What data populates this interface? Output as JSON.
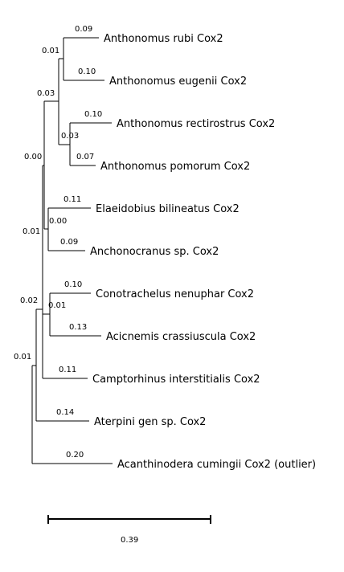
{
  "tree": {
    "leaves": [
      {
        "label": "Anthonomus rubi Cox2",
        "branch_length": "0.09"
      },
      {
        "label": "Anthonomus eugenii Cox2",
        "branch_length": "0.10"
      },
      {
        "label": "Anthonomus rectirostrus Cox2",
        "branch_length": "0.10"
      },
      {
        "label": "Anthonomus pomorum Cox2",
        "branch_length": "0.07"
      },
      {
        "label": "Elaeidobius bilineatus Cox2",
        "branch_length": "0.11"
      },
      {
        "label": "Anchonocranus sp. Cox2",
        "branch_length": "0.09"
      },
      {
        "label": "Conotrachelus nenuphar Cox2",
        "branch_length": "0.10"
      },
      {
        "label": "Acicnemis crassiuscula Cox2",
        "branch_length": "0.13"
      },
      {
        "label": "Camptorhinus interstitialis Cox2",
        "branch_length": "0.11"
      },
      {
        "label": "Aterpini gen sp. Cox2",
        "branch_length": "0.14"
      },
      {
        "label": "Acanthinodera cumingii Cox2 (outlier)",
        "branch_length": "0.20"
      }
    ],
    "internal_nodes": [
      {
        "id": "rubi_eugenii",
        "branch_length": "0.01"
      },
      {
        "id": "rectirostrus_pomorum",
        "branch_length": "0.03"
      },
      {
        "id": "anthonomus",
        "branch_length": "0.03"
      },
      {
        "id": "elaeidobius_anchonocranus",
        "branch_length": "0.00"
      },
      {
        "id": "anthonomus_elaeidobius",
        "branch_length": "0.00"
      },
      {
        "id": "conotrachelus_acicnemis",
        "branch_length": "0.01"
      },
      {
        "id": "with_conotrachelus",
        "branch_length": "0.01"
      },
      {
        "id": "with_camptorhinus",
        "branch_length": "0.02"
      },
      {
        "id": "ingroup",
        "branch_length": "0.01"
      }
    ]
  },
  "scale_bar": {
    "value": "0.39"
  }
}
